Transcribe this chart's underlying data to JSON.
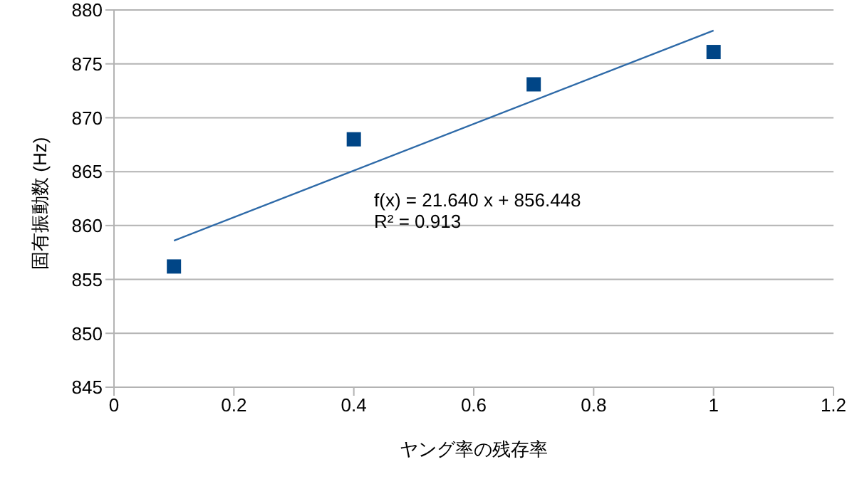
{
  "chart_data": {
    "type": "scatter",
    "xlabel": "ヤング率の残存率",
    "ylabel": "固有振動数 (Hz)",
    "x": [
      0.1,
      0.4,
      0.7,
      1.0
    ],
    "series": [
      {
        "color": "#004586",
        "values": [
          856.2,
          868.0,
          873.1,
          876.1
        ],
        "marker": "square"
      },
      {
        "type": "line",
        "color": "#2e6aa8",
        "x": [
          0.1,
          1.0
        ],
        "values": [
          858.6,
          878.1
        ],
        "marker": "none"
      }
    ],
    "annotations": [
      "f(x) = 21.640 x + 856.448",
      "R² = 0.913"
    ],
    "xlim": [
      0,
      1.2
    ],
    "xticks": [
      0,
      0.2,
      0.4,
      0.6,
      0.8,
      1,
      1.2
    ],
    "ylim": [
      845,
      880
    ],
    "yticks": [
      845,
      850,
      855,
      860,
      865,
      870,
      875,
      880
    ],
    "grid": "y"
  }
}
